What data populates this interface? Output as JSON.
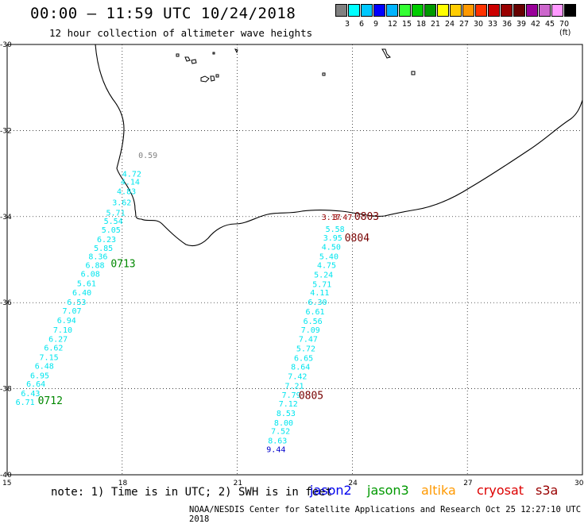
{
  "title": "00:00 – 11:59 UTC 10/24/2018",
  "subtitle": "12 hour collection of altimeter wave heights",
  "scale": {
    "colors": [
      "#808080",
      "#00ffff",
      "#00c8ff",
      "#0000ff",
      "#00b4ff",
      "#33ff33",
      "#00cc00",
      "#009900",
      "#ffff00",
      "#ffcc00",
      "#ff9900",
      "#ff3300",
      "#cc0000",
      "#990000",
      "#660000",
      "#990099",
      "#cc66cc",
      "#ff99ff",
      "#000000"
    ],
    "labels": [
      "3",
      "6",
      "9",
      "12",
      "15",
      "18",
      "21",
      "24",
      "27",
      "30",
      "33",
      "36",
      "39",
      "42",
      "45",
      "70 (ft)"
    ]
  },
  "lon_labels": [
    "15",
    "18",
    "21",
    "24",
    "27",
    "30"
  ],
  "lat_labels": [
    "-30",
    "-32",
    "-34",
    "-36",
    "-38",
    "-40"
  ],
  "obs": [
    {
      "lon": 18.42,
      "lat": -32.56,
      "text": "0.59",
      "color": "#808080"
    },
    {
      "lon": 18.0,
      "lat": -33.0,
      "text": "4.72",
      "color": "#00e5ee"
    },
    {
      "lon": 17.96,
      "lat": -33.18,
      "text": "4.14",
      "color": "#00e5ee"
    },
    {
      "lon": 17.86,
      "lat": -33.4,
      "text": "4.83",
      "color": "#00e5ee"
    },
    {
      "lon": 17.74,
      "lat": -33.66,
      "text": "3.62",
      "color": "#00e5ee"
    },
    {
      "lon": 17.58,
      "lat": -33.9,
      "text": "5.71",
      "color": "#00e5ee"
    },
    {
      "lon": 17.52,
      "lat": -34.1,
      "text": "5.54",
      "color": "#00e5ee"
    },
    {
      "lon": 17.46,
      "lat": -34.3,
      "text": "5.05",
      "color": "#00e5ee"
    },
    {
      "lon": 17.34,
      "lat": -34.52,
      "text": "6.23",
      "color": "#00e5ee"
    },
    {
      "lon": 17.26,
      "lat": -34.72,
      "text": "5.85",
      "color": "#00e5ee"
    },
    {
      "lon": 17.12,
      "lat": -34.92,
      "text": "8.36",
      "color": "#00e5ee"
    },
    {
      "lon": 17.04,
      "lat": -35.12,
      "text": "6.88",
      "color": "#00e5ee"
    },
    {
      "lon": 16.92,
      "lat": -35.32,
      "text": "6.08",
      "color": "#00e5ee"
    },
    {
      "lon": 16.82,
      "lat": -35.54,
      "text": "5.61",
      "color": "#00e5ee"
    },
    {
      "lon": 16.7,
      "lat": -35.76,
      "text": "6.40",
      "color": "#00e5ee"
    },
    {
      "lon": 16.56,
      "lat": -35.98,
      "text": "6.53",
      "color": "#00e5ee"
    },
    {
      "lon": 16.44,
      "lat": -36.18,
      "text": "7.07",
      "color": "#00e5ee"
    },
    {
      "lon": 16.3,
      "lat": -36.4,
      "text": "6.94",
      "color": "#00e5ee"
    },
    {
      "lon": 16.2,
      "lat": -36.62,
      "text": "7.10",
      "color": "#00e5ee"
    },
    {
      "lon": 16.08,
      "lat": -36.84,
      "text": "6.27",
      "color": "#00e5ee"
    },
    {
      "lon": 15.96,
      "lat": -37.04,
      "text": "6.62",
      "color": "#00e5ee"
    },
    {
      "lon": 15.84,
      "lat": -37.26,
      "text": "7.15",
      "color": "#00e5ee"
    },
    {
      "lon": 15.72,
      "lat": -37.46,
      "text": "6.48",
      "color": "#00e5ee"
    },
    {
      "lon": 15.6,
      "lat": -37.68,
      "text": "6.95",
      "color": "#00e5ee"
    },
    {
      "lon": 15.5,
      "lat": -37.88,
      "text": "6.64",
      "color": "#00e5ee"
    },
    {
      "lon": 15.36,
      "lat": -38.1,
      "text": "6.43",
      "color": "#00e5ee"
    },
    {
      "lon": 15.22,
      "lat": -38.3,
      "text": "6.71",
      "color": "#00e5ee"
    },
    {
      "lon": 17.7,
      "lat": -35.1,
      "text": "0713",
      "color": "#008800",
      "big": true
    },
    {
      "lon": 15.8,
      "lat": -38.28,
      "text": "0712",
      "color": "#008800",
      "big": true
    },
    {
      "lon": 23.2,
      "lat": -34.0,
      "text": "3.17",
      "color": "#990000"
    },
    {
      "lon": 23.5,
      "lat": -34.0,
      "text": "3.47",
      "color": "#990000"
    },
    {
      "lon": 24.05,
      "lat": -34.0,
      "text": "0803",
      "color": "#770000",
      "big": true
    },
    {
      "lon": 23.3,
      "lat": -34.28,
      "text": "5.58",
      "color": "#00e5ee"
    },
    {
      "lon": 23.24,
      "lat": -34.48,
      "text": "3.95",
      "color": "#00e5ee"
    },
    {
      "lon": 23.2,
      "lat": -34.7,
      "text": "4.50",
      "color": "#00e5ee"
    },
    {
      "lon": 23.14,
      "lat": -34.92,
      "text": "5.40",
      "color": "#00e5ee"
    },
    {
      "lon": 23.08,
      "lat": -35.12,
      "text": "4.75",
      "color": "#00e5ee"
    },
    {
      "lon": 23.0,
      "lat": -35.34,
      "text": "5.24",
      "color": "#00e5ee"
    },
    {
      "lon": 22.96,
      "lat": -35.56,
      "text": "5.71",
      "color": "#00e5ee"
    },
    {
      "lon": 22.9,
      "lat": -35.76,
      "text": "4.11",
      "color": "#00e5ee"
    },
    {
      "lon": 22.84,
      "lat": -35.98,
      "text": "6.30",
      "color": "#00e5ee"
    },
    {
      "lon": 22.78,
      "lat": -36.2,
      "text": "6.61",
      "color": "#00e5ee"
    },
    {
      "lon": 22.72,
      "lat": -36.42,
      "text": "6.56",
      "color": "#00e5ee"
    },
    {
      "lon": 22.66,
      "lat": -36.62,
      "text": "7.09",
      "color": "#00e5ee"
    },
    {
      "lon": 22.6,
      "lat": -36.84,
      "text": "7.47",
      "color": "#00e5ee"
    },
    {
      "lon": 22.54,
      "lat": -37.06,
      "text": "5.72",
      "color": "#00e5ee"
    },
    {
      "lon": 22.48,
      "lat": -37.28,
      "text": "6.65",
      "color": "#00e5ee"
    },
    {
      "lon": 22.4,
      "lat": -37.48,
      "text": "8.64",
      "color": "#00e5ee"
    },
    {
      "lon": 22.32,
      "lat": -37.7,
      "text": "7.42",
      "color": "#00e5ee"
    },
    {
      "lon": 22.24,
      "lat": -37.92,
      "text": "7.21",
      "color": "#00e5ee"
    },
    {
      "lon": 22.16,
      "lat": -38.14,
      "text": "7.79",
      "color": "#00e5ee"
    },
    {
      "lon": 22.08,
      "lat": -38.34,
      "text": "7.12",
      "color": "#00e5ee"
    },
    {
      "lon": 22.02,
      "lat": -38.56,
      "text": "8.53",
      "color": "#00e5ee"
    },
    {
      "lon": 21.96,
      "lat": -38.78,
      "text": "8.00",
      "color": "#00e5ee"
    },
    {
      "lon": 21.88,
      "lat": -38.98,
      "text": "7.52",
      "color": "#00e5ee"
    },
    {
      "lon": 21.8,
      "lat": -39.2,
      "text": "8.63",
      "color": "#00e5ee"
    },
    {
      "lon": 21.76,
      "lat": -39.4,
      "text": "9.44",
      "color": "#0000cc"
    },
    {
      "lon": 23.8,
      "lat": -34.5,
      "text": "0804",
      "color": "#770000",
      "big": true
    },
    {
      "lon": 22.6,
      "lat": -38.16,
      "text": "0805",
      "color": "#770000",
      "big": true
    }
  ],
  "note": "note: 1) Time is in UTC; 2) SWH is in feet",
  "satellites": [
    {
      "name": "jason2",
      "color": "#0000ee"
    },
    {
      "name": "jason3",
      "color": "#009900"
    },
    {
      "name": "altika",
      "color": "#ff9900"
    },
    {
      "name": "cryosat",
      "color": "#dd0000"
    },
    {
      "name": "s3a",
      "color": "#990000"
    }
  ],
  "footer": "NOAA/NESDIS Center for Satellite Applications and Research    Oct 25 12:27:10 UTC 2018"
}
